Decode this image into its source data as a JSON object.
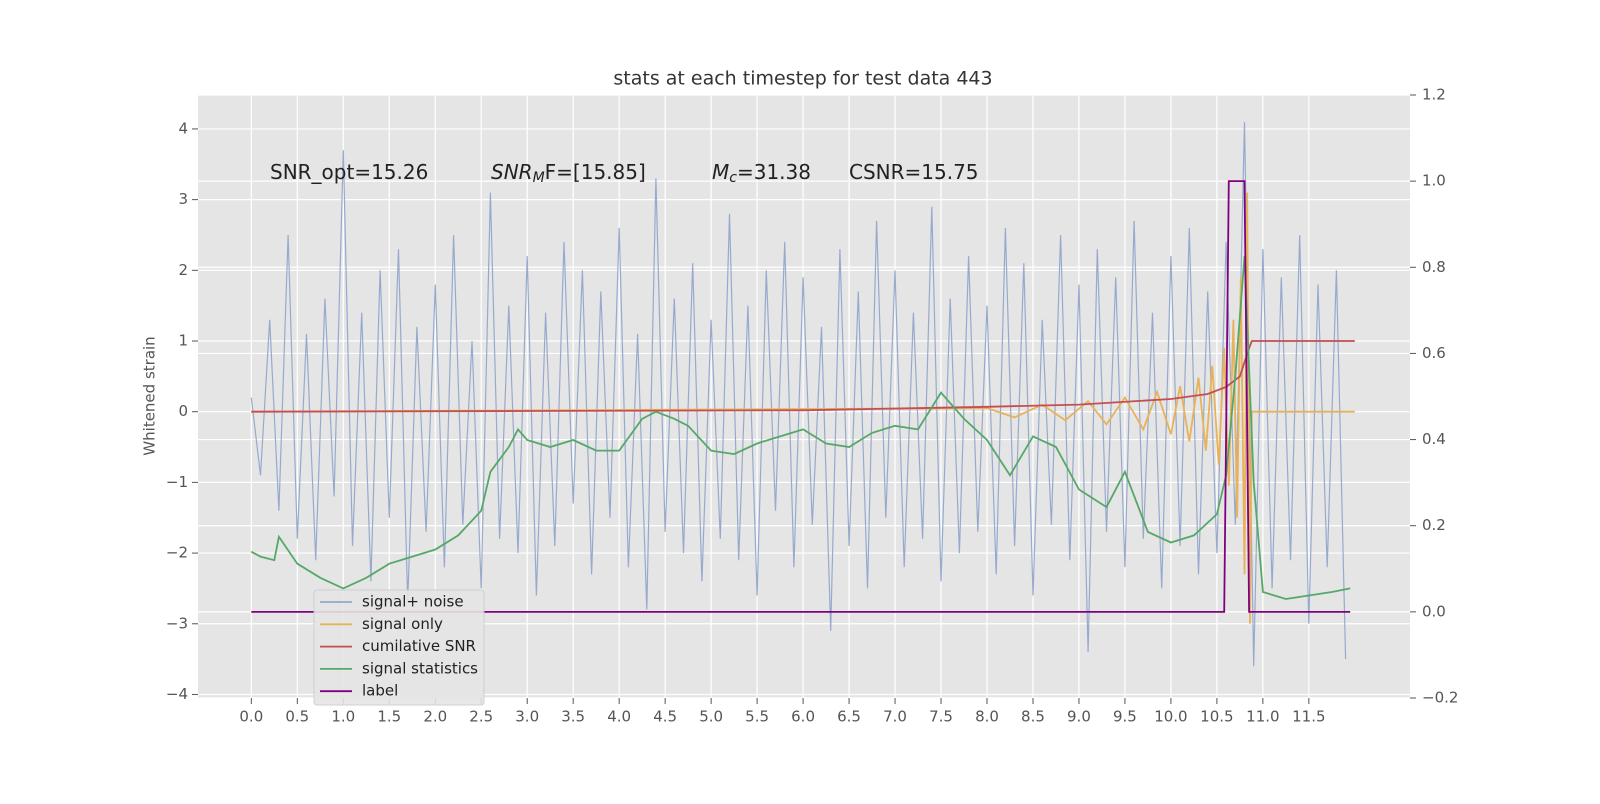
{
  "chart_data": {
    "type": "line",
    "title": "stats at each timestep for test data 443",
    "ylabel": "Whitened strain",
    "annotations": [
      [
        {
          "text": "SNR_opt=15.26"
        }
      ],
      [
        {
          "text": "SNR",
          "italic": true
        },
        {
          "text": "M",
          "italic": true,
          "sub": true
        },
        {
          "text": "F=[15.85]"
        }
      ],
      [
        {
          "text": "M",
          "italic": true
        },
        {
          "text": "c",
          "italic": true,
          "sub": true
        },
        {
          "text": "=31.38"
        }
      ],
      [
        {
          "text": "CSNR=15.75"
        }
      ]
    ],
    "xlim": [
      -0.58,
      12.6
    ],
    "ylim": [
      -4.05,
      4.48
    ],
    "y2lim": [
      -0.2,
      1.2
    ],
    "grid": true,
    "legend": "lower left",
    "xticks": [
      {
        "value": 0,
        "label": "0.0"
      },
      0.5,
      {
        "value": 1,
        "label": "1.0"
      },
      1.5,
      {
        "value": 2,
        "label": "2.0"
      },
      2.5,
      {
        "value": 3,
        "label": "3.0"
      },
      3.5,
      {
        "value": 4,
        "label": "4.0"
      },
      4.5,
      {
        "value": 5,
        "label": "5.0"
      },
      5.5,
      {
        "value": 6,
        "label": "6.0"
      },
      6.5,
      {
        "value": 7,
        "label": "7.0"
      },
      7.5,
      {
        "value": 8,
        "label": "8.0"
      },
      8.5,
      {
        "value": 9,
        "label": "9.0"
      },
      9.5,
      {
        "value": 10,
        "label": "10.0"
      },
      10.5,
      {
        "value": 11,
        "label": "11.0"
      },
      11.5
    ],
    "yticks": [
      {
        "value": -4,
        "label": "−4"
      },
      {
        "value": -3,
        "label": "−3"
      },
      {
        "value": -2,
        "label": "−2"
      },
      {
        "value": -1,
        "label": "−1"
      },
      0,
      1,
      2,
      3,
      4
    ],
    "y2ticks": [
      {
        "value": -0.2,
        "label": "−0.2"
      },
      {
        "value": 0,
        "label": "0.0"
      },
      0.2,
      0.4,
      0.6,
      0.8,
      {
        "value": 1,
        "label": "1.0"
      },
      1.2
    ],
    "series": [
      {
        "name": "signal+ noise",
        "color": "#92a7cb",
        "x": [
          0,
          0.1,
          0.2,
          0.3,
          0.4,
          0.5,
          0.6,
          0.7,
          0.8,
          0.9,
          1,
          1.1,
          1.2,
          1.3,
          1.4,
          1.5,
          1.6,
          1.7,
          1.8,
          1.9,
          2,
          2.1,
          2.2,
          2.3,
          2.4,
          2.5,
          2.6,
          2.7,
          2.8,
          2.9,
          3,
          3.1,
          3.2,
          3.3,
          3.4,
          3.5,
          3.6,
          3.7,
          3.8,
          3.9,
          4,
          4.1,
          4.2,
          4.3,
          4.4,
          4.5,
          4.6,
          4.7,
          4.8,
          4.9,
          5,
          5.1,
          5.2,
          5.3,
          5.4,
          5.5,
          5.6,
          5.7,
          5.8,
          5.9,
          6,
          6.1,
          6.2,
          6.3,
          6.4,
          6.5,
          6.6,
          6.7,
          6.8,
          6.9,
          7,
          7.1,
          7.2,
          7.3,
          7.4,
          7.5,
          7.6,
          7.7,
          7.8,
          7.9,
          8,
          8.1,
          8.2,
          8.3,
          8.4,
          8.5,
          8.6,
          8.7,
          8.8,
          8.9,
          9,
          9.1,
          9.2,
          9.3,
          9.4,
          9.5,
          9.6,
          9.7,
          9.8,
          9.9,
          10,
          10.1,
          10.2,
          10.3,
          10.4,
          10.5,
          10.6,
          10.7,
          10.8,
          10.9,
          11,
          11.1,
          11.2,
          11.3,
          11.4,
          11.5,
          11.6,
          11.7,
          11.8,
          11.9
        ],
        "values": [
          0.2,
          -0.9,
          1.3,
          -1.4,
          2.5,
          -1.8,
          1.1,
          -2.1,
          1.6,
          -1.2,
          3.7,
          -1.9,
          1.4,
          -2.4,
          2.0,
          -1.5,
          2.3,
          -2.7,
          1.2,
          -1.7,
          1.8,
          -2.2,
          2.5,
          -1.6,
          1.0,
          -2.5,
          3.1,
          -1.8,
          1.5,
          -2.0,
          2.2,
          -2.6,
          1.4,
          -1.9,
          2.4,
          -1.3,
          2.0,
          -2.3,
          1.7,
          -1.5,
          2.6,
          -2.2,
          1.1,
          -2.8,
          3.3,
          -1.7,
          1.6,
          -2.0,
          2.1,
          -2.4,
          1.3,
          -1.8,
          2.8,
          -2.1,
          1.5,
          -2.6,
          2.0,
          -1.4,
          2.4,
          -2.2,
          1.9,
          -1.6,
          1.2,
          -3.1,
          2.3,
          -1.9,
          1.7,
          -2.5,
          2.7,
          -1.5,
          2.0,
          -2.2,
          1.4,
          -1.8,
          2.9,
          -2.4,
          1.6,
          -2.0,
          2.2,
          -1.7,
          1.5,
          -2.3,
          2.6,
          -1.9,
          2.1,
          -2.6,
          1.3,
          -1.6,
          2.5,
          -2.1,
          1.8,
          -3.4,
          2.3,
          -1.7,
          1.9,
          -2.2,
          2.7,
          -1.8,
          1.4,
          -2.5,
          2.2,
          -1.9,
          2.6,
          -2.3,
          1.7,
          -2.0,
          2.4,
          -1.6,
          4.1,
          -3.6,
          2.3,
          -2.5,
          1.9,
          -2.1,
          2.5,
          -3.0,
          1.8,
          -2.2,
          2.0,
          -3.5
        ]
      },
      {
        "name": "signal only",
        "color": "#e8b25a",
        "x": [
          0,
          8.0,
          8.3,
          8.6,
          8.85,
          9.1,
          9.3,
          9.5,
          9.7,
          9.85,
          10.0,
          10.1,
          10.2,
          10.3,
          10.38,
          10.45,
          10.52,
          10.58,
          10.63,
          10.68,
          10.72,
          10.76,
          10.8,
          10.83,
          10.86,
          10.88,
          12.0
        ],
        "values": [
          0,
          0.05,
          -0.08,
          0.1,
          -0.12,
          0.15,
          -0.18,
          0.2,
          -0.25,
          0.28,
          -0.32,
          0.36,
          -0.42,
          0.48,
          -0.55,
          0.65,
          -0.75,
          0.9,
          -1.05,
          1.3,
          -1.5,
          1.9,
          -2.3,
          3.1,
          -3.0,
          0,
          0
        ]
      },
      {
        "name": "cumilative SNR",
        "color": "#c44e52",
        "x": [
          0,
          3,
          6,
          8,
          9,
          10,
          10.4,
          10.6,
          10.75,
          10.85,
          10.88,
          12.0
        ],
        "values": [
          0,
          0.01,
          0.02,
          0.07,
          0.1,
          0.18,
          0.25,
          0.35,
          0.5,
          0.9,
          1.0,
          1.0
        ]
      },
      {
        "name": "signal statistics",
        "color": "#55a868",
        "x": [
          0,
          0.1,
          0.25,
          0.3,
          0.5,
          0.75,
          1.0,
          1.25,
          1.5,
          1.75,
          2.0,
          2.25,
          2.5,
          2.6,
          2.8,
          2.9,
          3.0,
          3.25,
          3.5,
          3.75,
          4.0,
          4.25,
          4.4,
          4.6,
          4.75,
          5.0,
          5.25,
          5.5,
          5.75,
          6.0,
          6.25,
          6.5,
          6.75,
          7.0,
          7.25,
          7.5,
          7.75,
          8.0,
          8.25,
          8.5,
          8.75,
          9.0,
          9.3,
          9.5,
          9.75,
          10.0,
          10.25,
          10.5,
          10.6,
          10.7,
          10.8,
          10.9,
          11.0,
          11.25,
          11.5,
          11.75,
          11.95
        ],
        "values": [
          -1.98,
          -2.05,
          -2.1,
          -1.77,
          -2.15,
          -2.35,
          -2.5,
          -2.35,
          -2.15,
          -2.05,
          -1.95,
          -1.75,
          -1.4,
          -0.85,
          -0.5,
          -0.25,
          -0.4,
          -0.5,
          -0.4,
          -0.55,
          -0.55,
          -0.1,
          0.0,
          -0.1,
          -0.2,
          -0.55,
          -0.6,
          -0.45,
          -0.35,
          -0.25,
          -0.45,
          -0.5,
          -0.3,
          -0.2,
          -0.25,
          0.27,
          -0.1,
          -0.4,
          -0.9,
          -0.35,
          -0.5,
          -1.1,
          -1.35,
          -0.85,
          -1.7,
          -1.85,
          -1.75,
          -1.45,
          -0.9,
          0.5,
          2.2,
          -1.0,
          -2.55,
          -2.65,
          -2.6,
          -2.55,
          -2.5
        ]
      },
      {
        "name": "label",
        "color": "#800080",
        "axis": "y2",
        "x": [
          0,
          10.58,
          10.63,
          10.8,
          10.85,
          11.95
        ],
        "values": [
          0,
          0,
          1,
          1,
          0,
          0
        ]
      }
    ]
  }
}
